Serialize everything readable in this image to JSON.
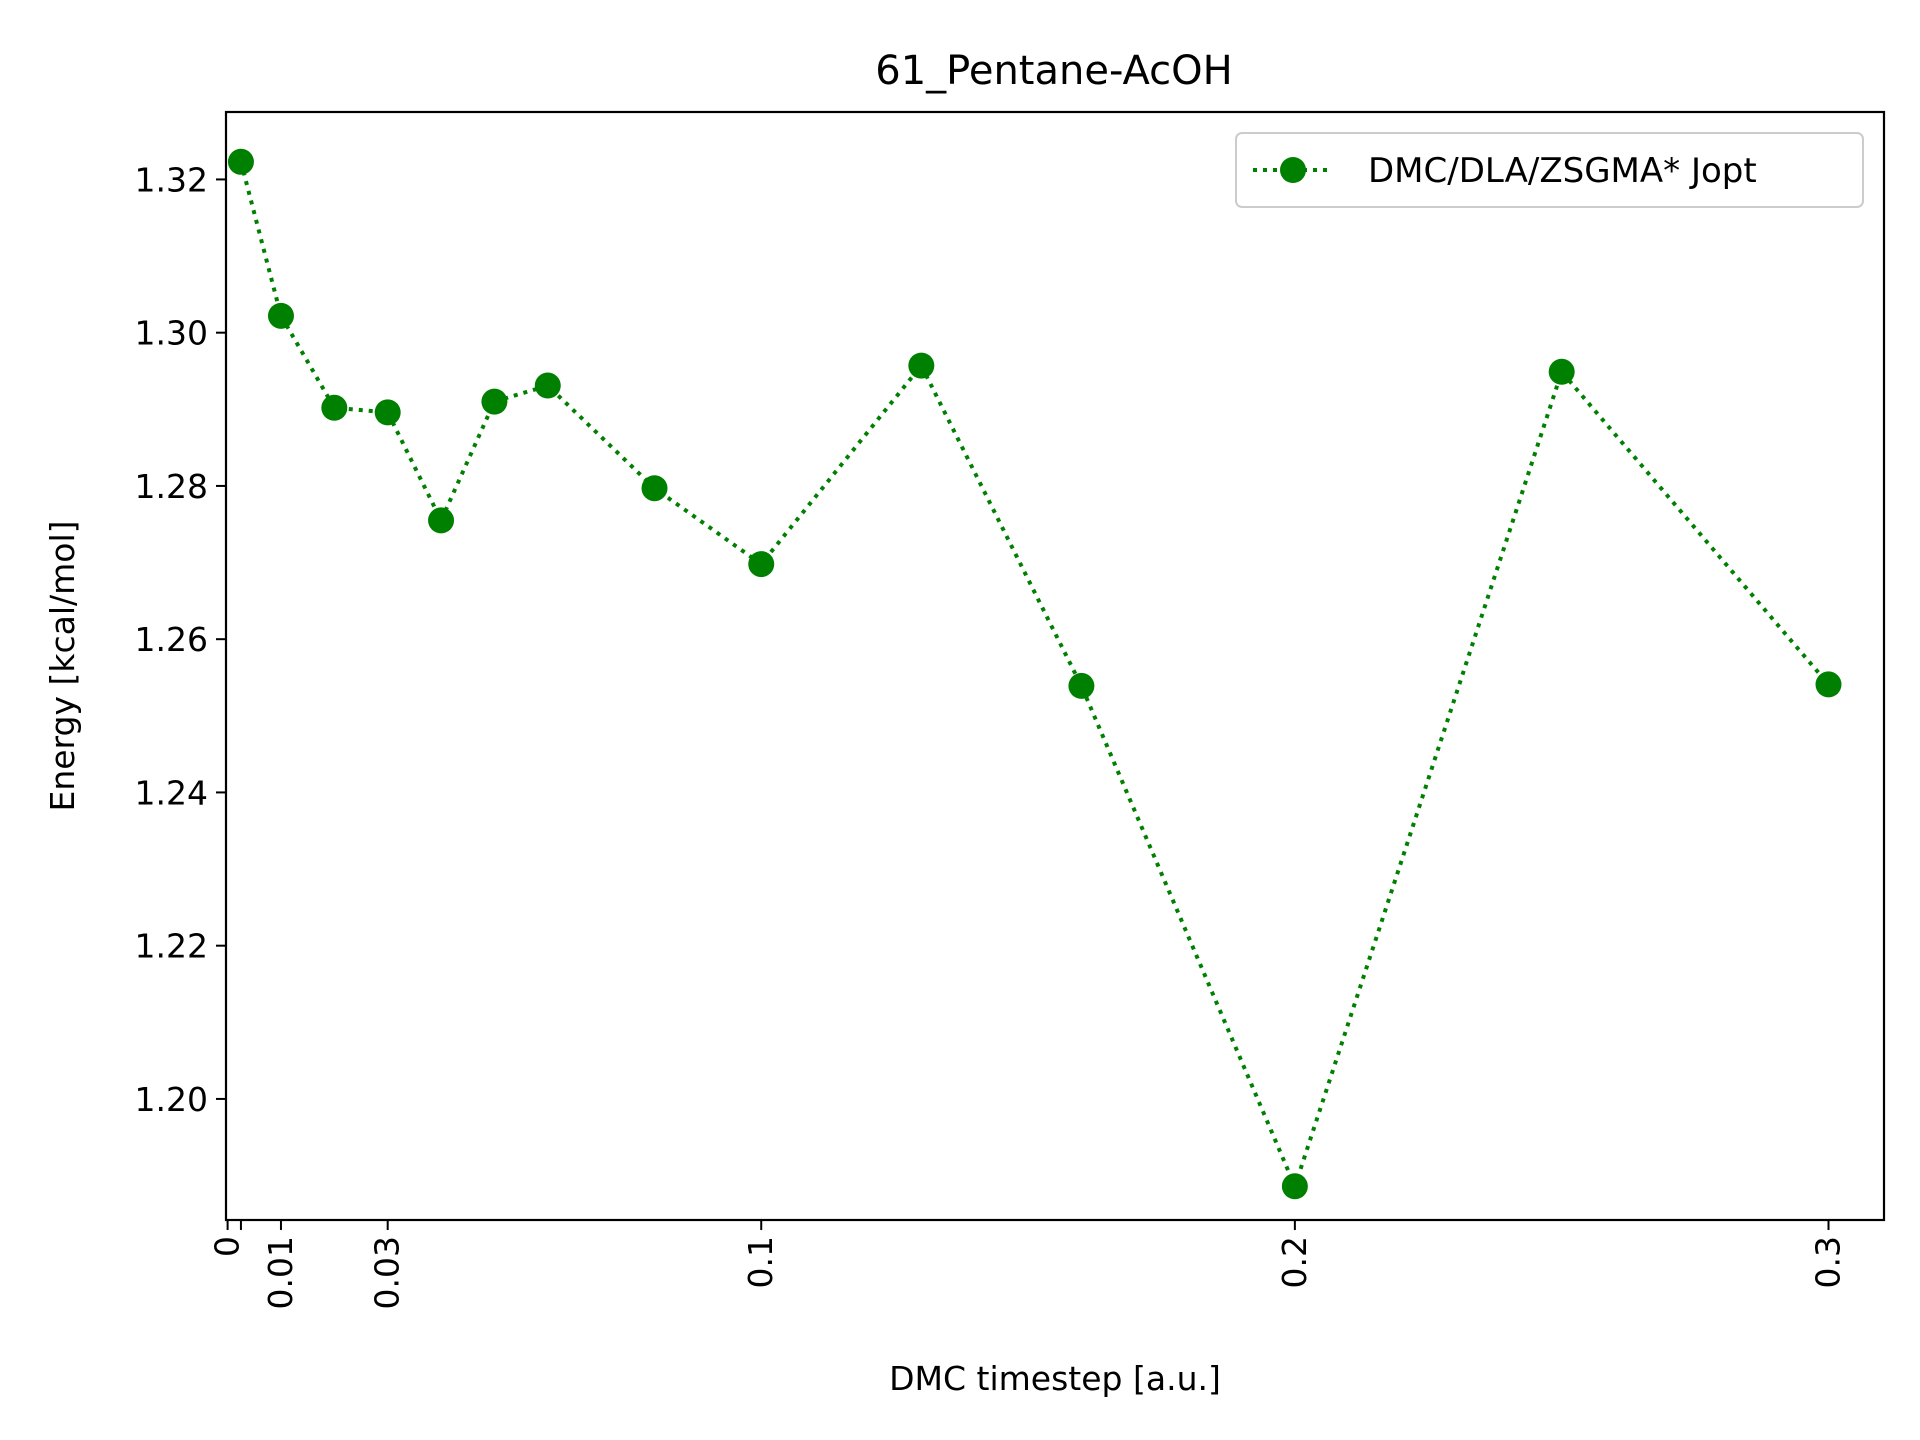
{
  "chart_data": {
    "type": "line",
    "title": "61_Pentane-AcOH",
    "xlabel": "DMC timestep [a.u.]",
    "ylabel": "Energy [kcal/mol]",
    "xlim": [
      -0.0003,
      0.3104
    ],
    "ylim": [
      1.1842,
      1.3288
    ],
    "x_ticks": [
      0,
      0.0025,
      0.01,
      0.03,
      0.1,
      0.2,
      0.3
    ],
    "x_tick_labels": [
      "0",
      "",
      "0.01",
      "0.03",
      "0.1",
      "0.2",
      "0.3"
    ],
    "y_ticks": [
      1.2,
      1.22,
      1.24,
      1.26,
      1.28,
      1.3,
      1.32
    ],
    "y_tick_labels": [
      "1.20",
      "1.22",
      "1.24",
      "1.26",
      "1.28",
      "1.30",
      "1.32"
    ],
    "grid": false,
    "legend_position": "top-right",
    "series": [
      {
        "name": "DMC/DLA/ZSGMA* Jopt",
        "color": "#008000",
        "line_style": "dotted",
        "marker": "circle",
        "x": [
          0.0025,
          0.01,
          0.02,
          0.03,
          0.04,
          0.05,
          0.06,
          0.08,
          0.1,
          0.13,
          0.16,
          0.2,
          0.25,
          0.3
        ],
        "y": [
          1.3223,
          1.3022,
          1.2902,
          1.2896,
          1.2755,
          1.291,
          1.2931,
          1.2797,
          1.2698,
          1.2957,
          1.2539,
          1.1886,
          1.2949,
          1.2541
        ]
      }
    ]
  }
}
